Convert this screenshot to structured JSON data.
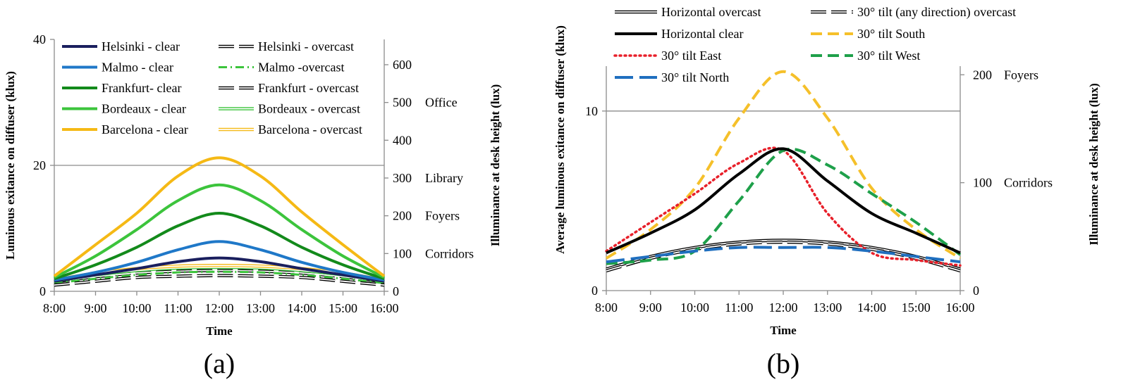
{
  "chart_data": [
    {
      "type": "line",
      "panel_label": "(a)",
      "x": [
        "8:00",
        "9:00",
        "10:00",
        "11:00",
        "12:00",
        "13:00",
        "14:00",
        "15:00",
        "16:00"
      ],
      "xlabel": "Time",
      "ylabel": "Luminous exitance on diffuser (klux)",
      "ylim": [
        0,
        40
      ],
      "yticks": [
        "0",
        "20",
        "40"
      ],
      "y2label": "Illuminance at desk height (lux)",
      "y2lim": [
        0,
        667
      ],
      "y2ticks": [
        "0",
        "100",
        "200",
        "300",
        "400",
        "500",
        "600"
      ],
      "right_annotations": [
        {
          "text": "Office",
          "y2": 500
        },
        {
          "text": "Library",
          "y2": 300
        },
        {
          "text": "Foyers",
          "y2": 200
        },
        {
          "text": "Corridors",
          "y2": 100
        }
      ],
      "gridlines_y": [
        20
      ],
      "legend_position": "top-left",
      "series": [
        {
          "name": "Helsinki - clear",
          "color": "#1a1f5e",
          "style": "solid",
          "values": [
            1.6,
            2.6,
            3.6,
            4.7,
            5.3,
            4.7,
            3.6,
            2.6,
            1.6
          ]
        },
        {
          "name": "Malmo - clear",
          "color": "#1f78c8",
          "style": "solid",
          "values": [
            1.8,
            3.0,
            4.6,
            6.6,
            7.9,
            6.6,
            4.6,
            3.0,
            1.8
          ]
        },
        {
          "name": "Frankfurt- clear",
          "color": "#138a1b",
          "style": "solid",
          "values": [
            2.0,
            4.2,
            7.0,
            10.4,
            12.4,
            10.4,
            7.0,
            4.2,
            2.0
          ]
        },
        {
          "name": "Bordeaux - clear",
          "color": "#3cc43c",
          "style": "solid",
          "values": [
            2.2,
            5.6,
            9.8,
            14.4,
            16.9,
            14.4,
            9.8,
            5.6,
            2.2
          ]
        },
        {
          "name": "Barcelona - clear",
          "color": "#f5b915",
          "style": "solid",
          "values": [
            2.4,
            7.4,
            12.4,
            18.3,
            21.2,
            18.3,
            12.6,
            7.4,
            2.4
          ]
        },
        {
          "name": "Helsinki - overcast",
          "color": "#000000",
          "style": "double-dash",
          "values": [
            1.5,
            2.3,
            2.9,
            3.2,
            3.3,
            3.2,
            2.9,
            2.3,
            1.5
          ]
        },
        {
          "name": "Malmo -overcast",
          "color": "#3cc43c",
          "style": "dash-dot",
          "values": [
            1.3,
            2.0,
            2.6,
            3.0,
            3.1,
            3.0,
            2.6,
            2.0,
            1.3
          ]
        },
        {
          "name": "Frankfurt - overcast",
          "color": "#000000",
          "style": "double-dash",
          "values": [
            1.0,
            1.6,
            2.2,
            2.4,
            2.5,
            2.4,
            2.2,
            1.6,
            1.0
          ]
        },
        {
          "name": "Bordeaux - overcast",
          "color": "#3cc43c",
          "style": "double",
          "values": [
            1.6,
            2.6,
            3.3,
            3.7,
            3.8,
            3.7,
            3.3,
            2.6,
            1.6
          ]
        },
        {
          "name": "Barcelona - overcast",
          "color": "#f5b915",
          "style": "double",
          "values": [
            1.8,
            2.9,
            3.6,
            4.0,
            4.1,
            4.0,
            3.6,
            2.9,
            1.8
          ]
        }
      ]
    },
    {
      "type": "line",
      "panel_label": "(b)",
      "x": [
        "8:00",
        "9:00",
        "10:00",
        "11:00",
        "12:00",
        "13:00",
        "14:00",
        "15:00",
        "16:00"
      ],
      "xlabel": "Time",
      "ylabel": "Average luminous exitance on diffuser (klux)",
      "ylim": [
        0,
        12.5
      ],
      "yticks": [
        "0",
        "10"
      ],
      "y2label": "Illuminance at desk height (lux)",
      "y2lim": [
        0,
        208
      ],
      "y2ticks": [
        "0",
        "100",
        "200"
      ],
      "right_annotations": [
        {
          "text": "Foyers",
          "y2": 200
        },
        {
          "text": "Corridors",
          "y2": 100
        }
      ],
      "gridlines_y": [
        10
      ],
      "legend_position": "top, outside",
      "series": [
        {
          "name": "Horizontal overcast",
          "color": "#000000",
          "style": "double",
          "values": [
            1.2,
            1.9,
            2.4,
            2.7,
            2.8,
            2.7,
            2.4,
            1.9,
            1.2
          ]
        },
        {
          "name": "30° tilt (any direction) overcast",
          "color": "#000000",
          "style": "double-dash",
          "values": [
            1.1,
            1.8,
            2.3,
            2.6,
            2.7,
            2.6,
            2.3,
            1.8,
            1.1
          ]
        },
        {
          "name": "Horizontal clear",
          "color": "#000000",
          "style": "solid",
          "values": [
            2.1,
            3.2,
            4.5,
            6.5,
            7.9,
            6.1,
            4.3,
            3.2,
            2.1
          ]
        },
        {
          "name": "30° tilt South",
          "color": "#f5c02a",
          "style": "dash",
          "values": [
            1.8,
            3.4,
            5.7,
            9.6,
            12.2,
            9.6,
            5.7,
            3.4,
            1.8
          ]
        },
        {
          "name": "30° tilt East",
          "color": "#e8202a",
          "style": "dot",
          "values": [
            2.2,
            3.8,
            5.4,
            7.1,
            7.8,
            4.3,
            2.1,
            1.7,
            1.4
          ]
        },
        {
          "name": "30° tilt West",
          "color": "#1ea04a",
          "style": "dash",
          "values": [
            1.5,
            1.7,
            2.2,
            5.0,
            7.8,
            7.0,
            5.4,
            3.8,
            2.0
          ]
        },
        {
          "name": "30° tilt North",
          "color": "#1f6fbf",
          "style": "longdash",
          "values": [
            1.6,
            1.9,
            2.2,
            2.4,
            2.4,
            2.4,
            2.2,
            1.9,
            1.6
          ]
        }
      ]
    }
  ]
}
